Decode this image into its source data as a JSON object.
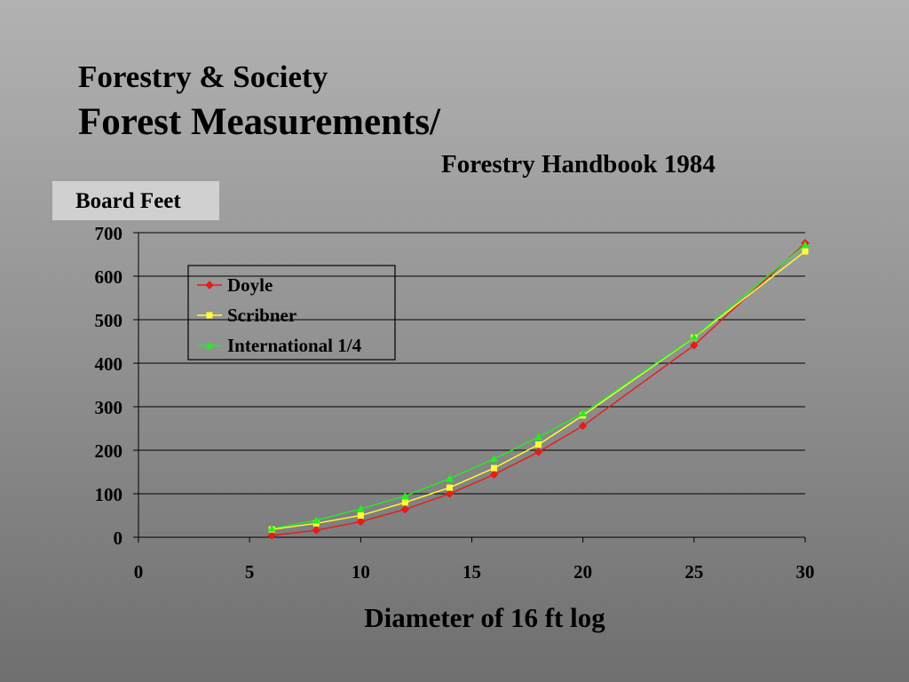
{
  "slide": {
    "title_line1": "Forestry & Society",
    "title_line2": "Forest Measurements/",
    "subtitle": "Forestry Handbook 1984"
  },
  "chart_data": {
    "type": "line",
    "ylabel": "Board Feet",
    "xlabel": "Diameter of 16 ft log",
    "xlim": [
      0,
      30
    ],
    "ylim": [
      0,
      700
    ],
    "xticks": [
      0,
      5,
      10,
      15,
      20,
      25,
      30
    ],
    "yticks": [
      0,
      100,
      200,
      300,
      400,
      500,
      600,
      700
    ],
    "grid": "horizontal",
    "legend_position": "upper-left",
    "series": [
      {
        "name": "Doyle",
        "color": "#e81a1a",
        "marker": "diamond",
        "x": [
          6,
          8,
          10,
          12,
          14,
          16,
          18,
          20,
          25,
          30
        ],
        "y": [
          4,
          16,
          36,
          64,
          100,
          144,
          196,
          256,
          441,
          676
        ]
      },
      {
        "name": "Scribner",
        "color": "#ffff33",
        "marker": "square",
        "x": [
          6,
          8,
          10,
          12,
          14,
          16,
          18,
          20,
          25,
          30
        ],
        "y": [
          18,
          32,
          50,
          80,
          114,
          159,
          213,
          280,
          459,
          657
        ]
      },
      {
        "name": "International 1/4",
        "color": "#22ee22",
        "marker": "triangle",
        "x": [
          6,
          8,
          10,
          12,
          14,
          16,
          18,
          20,
          25,
          30
        ],
        "y": [
          20,
          39,
          65,
          95,
          135,
          180,
          230,
          285,
          460,
          672
        ]
      }
    ]
  }
}
